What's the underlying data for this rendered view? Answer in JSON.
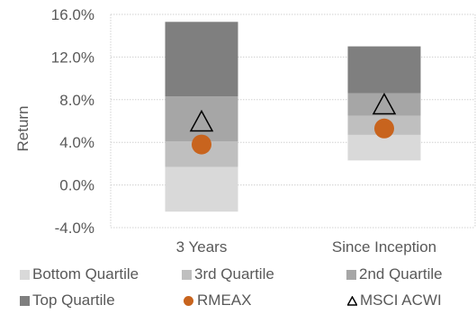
{
  "chart_data": {
    "type": "floating-bar",
    "categories": [
      "3 Years",
      "Since Inception"
    ],
    "ylabel": "Return",
    "ylim": [
      -4.0,
      16.0
    ],
    "yticks": [
      "-4.0%",
      "0.0%",
      "4.0%",
      "8.0%",
      "12.0%",
      "16.0%"
    ],
    "ytick_values": [
      -4,
      0,
      4,
      8,
      12,
      16
    ],
    "grid": "horizontal dotted",
    "legend_position": "bottom",
    "quartile_series": [
      {
        "name": "Bottom Quartile",
        "color": "#d9d9d9",
        "ranges": [
          [
            -2.5,
            1.7
          ],
          [
            2.3,
            4.7
          ]
        ]
      },
      {
        "name": "3rd Quartile",
        "color": "#bfbfbf",
        "ranges": [
          [
            1.7,
            4.1
          ],
          [
            4.7,
            6.5
          ]
        ]
      },
      {
        "name": "2nd Quartile",
        "color": "#a6a6a6",
        "ranges": [
          [
            4.1,
            8.3
          ],
          [
            6.5,
            8.6
          ]
        ]
      },
      {
        "name": "Top Quartile",
        "color": "#7f7f7f",
        "ranges": [
          [
            8.3,
            15.3
          ],
          [
            8.6,
            13.0
          ]
        ]
      }
    ],
    "point_series": [
      {
        "name": "RMEAX",
        "marker": "circle",
        "color": "#c8641e",
        "values": [
          3.8,
          5.3
        ]
      },
      {
        "name": "MSCI ACWI",
        "marker": "triangle",
        "color": "#000000",
        "values": [
          6.0,
          7.6
        ]
      }
    ]
  }
}
